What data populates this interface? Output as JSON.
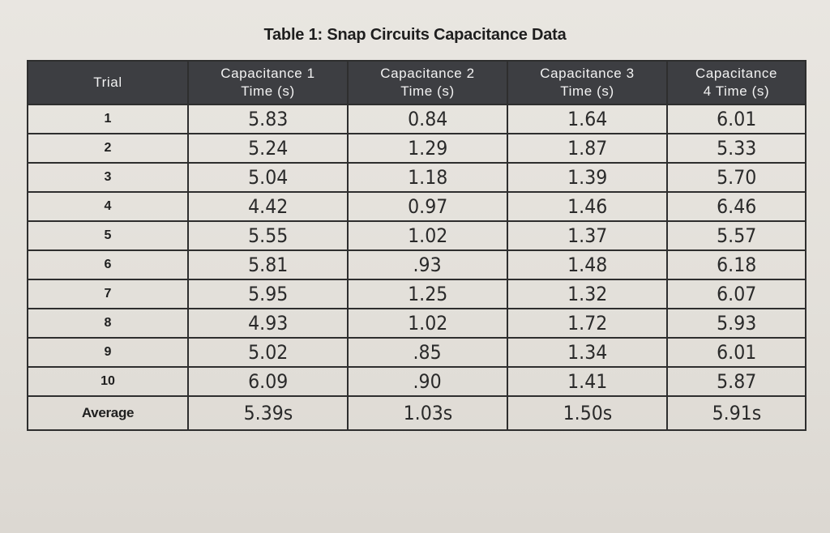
{
  "title": "Table 1: Snap Circuits Capacitance Data",
  "headers": [
    "Trial",
    "Capacitance 1\nTime (s)",
    "Capacitance 2\nTime (s)",
    "Capacitance 3\nTime (s)",
    "Capacitance\n4 Time (s)"
  ],
  "rows": [
    {
      "trial": "1",
      "values": [
        "5.83",
        "0.84",
        "1.64",
        "6.01"
      ]
    },
    {
      "trial": "2",
      "values": [
        "5.24",
        "1.29",
        "1.87",
        "5.33"
      ]
    },
    {
      "trial": "3",
      "values": [
        "5.04",
        "1.18",
        "1.39",
        "5.70"
      ]
    },
    {
      "trial": "4",
      "values": [
        "4.42",
        "0.97",
        "1.46",
        "6.46"
      ]
    },
    {
      "trial": "5",
      "values": [
        "5.55",
        "1.02",
        "1.37",
        "5.57"
      ]
    },
    {
      "trial": "6",
      "values": [
        "5.81",
        ".93",
        "1.48",
        "6.18"
      ]
    },
    {
      "trial": "7",
      "values": [
        "5.95",
        "1.25",
        "1.32",
        "6.07"
      ]
    },
    {
      "trial": "8",
      "values": [
        "4.93",
        "1.02",
        "1.72",
        "5.93"
      ]
    },
    {
      "trial": "9",
      "values": [
        "5.02",
        ".85",
        "1.34",
        "6.01"
      ]
    },
    {
      "trial": "10",
      "values": [
        "6.09",
        ".90",
        "1.41",
        "5.87"
      ]
    }
  ],
  "average": {
    "label": "Average",
    "values": [
      "5.39s",
      "1.03s",
      "1.50s",
      "5.91s"
    ]
  }
}
